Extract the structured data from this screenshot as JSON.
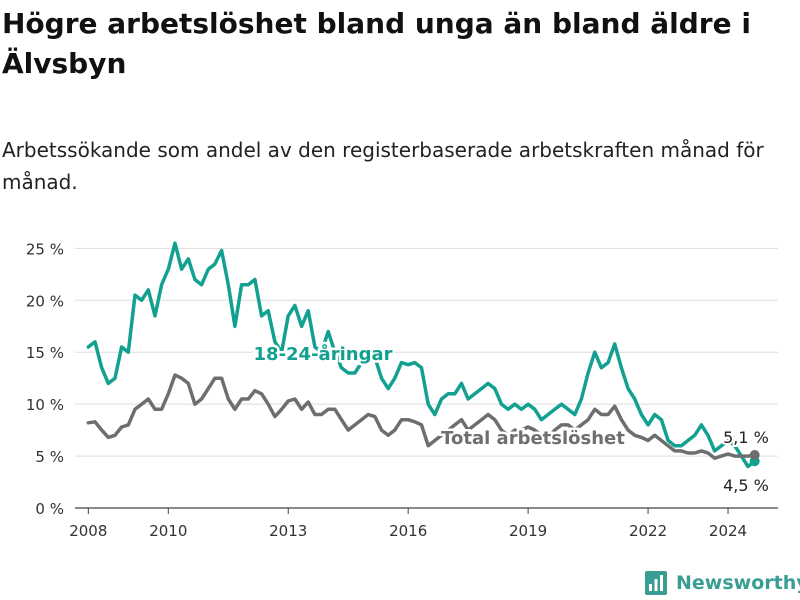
{
  "header": {
    "title": "Högre arbetslöshet bland unga än bland äldre i Älvsbyn",
    "subtitle": "Arbetssökande som andel av den registerbaserade arbetskraften månad för månad."
  },
  "brand": {
    "name": "Newsworthy",
    "icon": "bar-chart-logo-icon",
    "color": "#3a9d93"
  },
  "chart_data": {
    "type": "line",
    "title": "Högre arbetslöshet bland unga än bland äldre i Älvsbyn",
    "subtitle": "Arbetssökande som andel av den registerbaserade arbetskraften månad för månad.",
    "xlabel": "",
    "ylabel": "",
    "x_ticks": [
      "2008",
      "2010",
      "2013",
      "2016",
      "2019",
      "2022",
      "2024"
    ],
    "y_ticks": [
      "0 %",
      "5 %",
      "10 %",
      "15 %",
      "20 %",
      "25 %"
    ],
    "ylim": [
      0,
      26
    ],
    "xlim": [
      "2007-09",
      "2025-04"
    ],
    "grid": "horizontal",
    "legend": "inline labels",
    "series": [
      {
        "name": "18-24-åringar",
        "color": "#12a190",
        "end_label": "4,5 %",
        "points": [
          [
            "2008-01",
            15.5
          ],
          [
            "2008-03",
            16.0
          ],
          [
            "2008-05",
            13.5
          ],
          [
            "2008-07",
            12.0
          ],
          [
            "2008-09",
            12.5
          ],
          [
            "2008-11",
            15.5
          ],
          [
            "2009-01",
            15.0
          ],
          [
            "2009-03",
            20.5
          ],
          [
            "2009-05",
            20.0
          ],
          [
            "2009-07",
            21.0
          ],
          [
            "2009-09",
            18.5
          ],
          [
            "2009-11",
            21.5
          ],
          [
            "2010-01",
            23.0
          ],
          [
            "2010-03",
            25.5
          ],
          [
            "2010-05",
            23.0
          ],
          [
            "2010-07",
            24.0
          ],
          [
            "2010-09",
            22.0
          ],
          [
            "2010-11",
            21.5
          ],
          [
            "2011-01",
            23.0
          ],
          [
            "2011-03",
            23.5
          ],
          [
            "2011-05",
            24.8
          ],
          [
            "2011-07",
            21.5
          ],
          [
            "2011-09",
            17.5
          ],
          [
            "2011-11",
            21.5
          ],
          [
            "2012-01",
            21.5
          ],
          [
            "2012-03",
            22.0
          ],
          [
            "2012-05",
            18.5
          ],
          [
            "2012-07",
            19.0
          ],
          [
            "2012-09",
            16.0
          ],
          [
            "2012-11",
            15.0
          ],
          [
            "2013-01",
            18.5
          ],
          [
            "2013-03",
            19.5
          ],
          [
            "2013-05",
            17.5
          ],
          [
            "2013-07",
            19.0
          ],
          [
            "2013-09",
            15.5
          ],
          [
            "2013-11",
            15.0
          ],
          [
            "2014-01",
            17.0
          ],
          [
            "2014-03",
            15.0
          ],
          [
            "2014-05",
            13.5
          ],
          [
            "2014-07",
            13.0
          ],
          [
            "2014-09",
            13.0
          ],
          [
            "2014-11",
            14.0
          ],
          [
            "2015-01",
            14.0
          ],
          [
            "2015-03",
            14.5
          ],
          [
            "2015-05",
            12.5
          ],
          [
            "2015-07",
            11.5
          ],
          [
            "2015-09",
            12.5
          ],
          [
            "2015-11",
            14.0
          ],
          [
            "2016-01",
            13.8
          ],
          [
            "2016-03",
            14.0
          ],
          [
            "2016-05",
            13.5
          ],
          [
            "2016-07",
            10.0
          ],
          [
            "2016-09",
            9.0
          ],
          [
            "2016-11",
            10.5
          ],
          [
            "2017-01",
            11.0
          ],
          [
            "2017-03",
            11.0
          ],
          [
            "2017-05",
            12.0
          ],
          [
            "2017-07",
            10.5
          ],
          [
            "2017-09",
            11.0
          ],
          [
            "2017-11",
            11.5
          ],
          [
            "2018-01",
            12.0
          ],
          [
            "2018-03",
            11.5
          ],
          [
            "2018-05",
            10.0
          ],
          [
            "2018-07",
            9.5
          ],
          [
            "2018-09",
            10.0
          ],
          [
            "2018-11",
            9.5
          ],
          [
            "2019-01",
            10.0
          ],
          [
            "2019-03",
            9.5
          ],
          [
            "2019-05",
            8.5
          ],
          [
            "2019-07",
            9.0
          ],
          [
            "2019-09",
            9.5
          ],
          [
            "2019-11",
            10.0
          ],
          [
            "2020-01",
            9.5
          ],
          [
            "2020-03",
            9.0
          ],
          [
            "2020-05",
            10.5
          ],
          [
            "2020-07",
            13.0
          ],
          [
            "2020-09",
            15.0
          ],
          [
            "2020-11",
            13.5
          ],
          [
            "2021-01",
            14.0
          ],
          [
            "2021-03",
            15.8
          ],
          [
            "2021-05",
            13.5
          ],
          [
            "2021-07",
            11.5
          ],
          [
            "2021-09",
            10.5
          ],
          [
            "2021-11",
            9.0
          ],
          [
            "2022-01",
            8.0
          ],
          [
            "2022-03",
            9.0
          ],
          [
            "2022-05",
            8.5
          ],
          [
            "2022-07",
            6.5
          ],
          [
            "2022-09",
            6.0
          ],
          [
            "2022-11",
            6.0
          ],
          [
            "2023-01",
            6.5
          ],
          [
            "2023-03",
            7.0
          ],
          [
            "2023-05",
            8.0
          ],
          [
            "2023-07",
            7.0
          ],
          [
            "2023-09",
            5.5
          ],
          [
            "2023-11",
            6.0
          ],
          [
            "2024-01",
            6.5
          ],
          [
            "2024-03",
            6.0
          ],
          [
            "2024-05",
            5.0
          ],
          [
            "2024-07",
            4.0
          ],
          [
            "2024-09",
            4.5
          ]
        ]
      },
      {
        "name": "Total arbetslöshet",
        "color": "#6e6e6e",
        "end_label": "5,1 %",
        "points": [
          [
            "2008-01",
            8.2
          ],
          [
            "2008-03",
            8.3
          ],
          [
            "2008-05",
            7.5
          ],
          [
            "2008-07",
            6.8
          ],
          [
            "2008-09",
            7.0
          ],
          [
            "2008-11",
            7.8
          ],
          [
            "2009-01",
            8.0
          ],
          [
            "2009-03",
            9.5
          ],
          [
            "2009-05",
            10.0
          ],
          [
            "2009-07",
            10.5
          ],
          [
            "2009-09",
            9.5
          ],
          [
            "2009-11",
            9.5
          ],
          [
            "2010-01",
            11.0
          ],
          [
            "2010-03",
            12.8
          ],
          [
            "2010-05",
            12.5
          ],
          [
            "2010-07",
            12.0
          ],
          [
            "2010-09",
            10.0
          ],
          [
            "2010-11",
            10.5
          ],
          [
            "2011-01",
            11.5
          ],
          [
            "2011-03",
            12.5
          ],
          [
            "2011-05",
            12.5
          ],
          [
            "2011-07",
            10.5
          ],
          [
            "2011-09",
            9.5
          ],
          [
            "2011-11",
            10.5
          ],
          [
            "2012-01",
            10.5
          ],
          [
            "2012-03",
            11.3
          ],
          [
            "2012-05",
            11.0
          ],
          [
            "2012-07",
            10.0
          ],
          [
            "2012-09",
            8.8
          ],
          [
            "2012-11",
            9.5
          ],
          [
            "2013-01",
            10.3
          ],
          [
            "2013-03",
            10.5
          ],
          [
            "2013-05",
            9.5
          ],
          [
            "2013-07",
            10.2
          ],
          [
            "2013-09",
            9.0
          ],
          [
            "2013-11",
            9.0
          ],
          [
            "2014-01",
            9.5
          ],
          [
            "2014-03",
            9.5
          ],
          [
            "2014-05",
            8.5
          ],
          [
            "2014-07",
            7.5
          ],
          [
            "2014-09",
            8.0
          ],
          [
            "2014-11",
            8.5
          ],
          [
            "2015-01",
            9.0
          ],
          [
            "2015-03",
            8.8
          ],
          [
            "2015-05",
            7.5
          ],
          [
            "2015-07",
            7.0
          ],
          [
            "2015-09",
            7.5
          ],
          [
            "2015-11",
            8.5
          ],
          [
            "2016-01",
            8.5
          ],
          [
            "2016-03",
            8.3
          ],
          [
            "2016-05",
            8.0
          ],
          [
            "2016-07",
            6.0
          ],
          [
            "2016-09",
            6.5
          ],
          [
            "2016-11",
            7.0
          ],
          [
            "2017-01",
            7.5
          ],
          [
            "2017-03",
            8.0
          ],
          [
            "2017-05",
            8.5
          ],
          [
            "2017-07",
            7.5
          ],
          [
            "2017-09",
            8.0
          ],
          [
            "2017-11",
            8.5
          ],
          [
            "2018-01",
            9.0
          ],
          [
            "2018-03",
            8.5
          ],
          [
            "2018-05",
            7.5
          ],
          [
            "2018-07",
            7.0
          ],
          [
            "2018-09",
            7.5
          ],
          [
            "2018-11",
            7.5
          ],
          [
            "2019-01",
            7.8
          ],
          [
            "2019-03",
            7.5
          ],
          [
            "2019-05",
            7.0
          ],
          [
            "2019-07",
            6.8
          ],
          [
            "2019-09",
            7.5
          ],
          [
            "2019-11",
            8.0
          ],
          [
            "2020-01",
            8.0
          ],
          [
            "2020-03",
            7.5
          ],
          [
            "2020-05",
            8.0
          ],
          [
            "2020-07",
            8.5
          ],
          [
            "2020-09",
            9.5
          ],
          [
            "2020-11",
            9.0
          ],
          [
            "2021-01",
            9.0
          ],
          [
            "2021-03",
            9.8
          ],
          [
            "2021-05",
            8.5
          ],
          [
            "2021-07",
            7.5
          ],
          [
            "2021-09",
            7.0
          ],
          [
            "2021-11",
            6.8
          ],
          [
            "2022-01",
            6.5
          ],
          [
            "2022-03",
            7.0
          ],
          [
            "2022-05",
            6.5
          ],
          [
            "2022-07",
            6.0
          ],
          [
            "2022-09",
            5.5
          ],
          [
            "2022-11",
            5.5
          ],
          [
            "2023-01",
            5.3
          ],
          [
            "2023-03",
            5.3
          ],
          [
            "2023-05",
            5.5
          ],
          [
            "2023-07",
            5.3
          ],
          [
            "2023-09",
            4.8
          ],
          [
            "2023-11",
            5.0
          ],
          [
            "2024-01",
            5.2
          ],
          [
            "2024-03",
            5.0
          ],
          [
            "2024-05",
            5.0
          ],
          [
            "2024-07",
            5.0
          ],
          [
            "2024-09",
            5.1
          ]
        ]
      }
    ]
  }
}
